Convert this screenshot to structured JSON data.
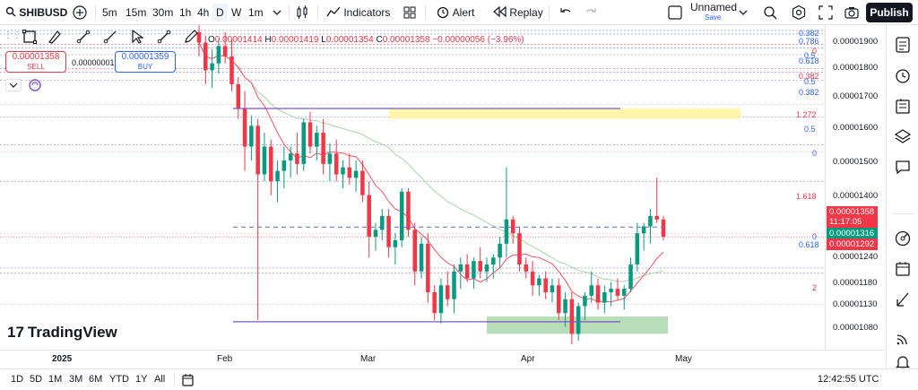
{
  "toolbar": {
    "symbol": "SHIBUSD",
    "intervals": [
      "5m",
      "15m",
      "30m",
      "1h",
      "4h",
      "D",
      "W",
      "1m"
    ],
    "active_interval": "D",
    "indicators_label": "Indicators",
    "alert_label": "Alert",
    "replay_label": "Replay",
    "layout_name": "Unnamed",
    "layout_status": "Save",
    "publish_label": "Publish"
  },
  "legend": {
    "open_key": "O",
    "open": "0.00001414",
    "high_key": "H",
    "high": "0.00001419",
    "low_key": "L",
    "low": "0.00001354",
    "close_key": "C",
    "close": "0.00001358",
    "change": "−0.00000056 (−3.96%)"
  },
  "trade": {
    "sell_price": "0.00001358",
    "sell_label": "SELL",
    "spread": "0.00000001",
    "buy_price": "0.00001359",
    "buy_label": "BUY"
  },
  "price_axis": {
    "ticks": [
      "0.00001900",
      "0.00001800",
      "0.00001700",
      "0.00001600",
      "0.00001500",
      "0.00001400",
      "0.00001240",
      "0.00001180",
      "0.00001130",
      "0.00001080"
    ],
    "badges": [
      "0.00001358",
      "11:17:05",
      "0.00001316",
      "0.00001292"
    ],
    "badge_colors": [
      "#f23645",
      "#f23645",
      "#089981",
      "#f23645"
    ]
  },
  "fib_labels": [
    "0.382",
    "0.786",
    "0",
    "0.5",
    "0.618",
    "0.382",
    "0.5",
    "0.382",
    "1.272",
    "0.5",
    "0",
    "1.618",
    "0",
    "0.618",
    "2"
  ],
  "time_axis": [
    "2025",
    "Feb",
    "Mar",
    "Apr",
    "May"
  ],
  "bottom": {
    "ranges": [
      "1D",
      "5D",
      "1M",
      "3M",
      "6M",
      "YTD",
      "1Y",
      "All"
    ],
    "clock": "12:42:55 UTC"
  },
  "brand": "TradingView",
  "colors": {
    "up": "#089981",
    "down": "#f23645",
    "accent": "#2962ff",
    "ma_fast": "#f7525f",
    "ma_slow": "#a5d6a7"
  },
  "chart_data": {
    "type": "candlestick",
    "symbol": "SHIBUSD",
    "interval": "D",
    "x_range": [
      "2025-01-12",
      "2025-04-25"
    ],
    "y_range": [
      1.05e-05,
      1.96e-05
    ],
    "ohlc": [
      [
        1.95,
        1.97,
        1.88,
        1.92
      ],
      [
        1.92,
        1.94,
        1.8,
        1.84
      ],
      [
        1.84,
        1.9,
        1.79,
        1.86
      ],
      [
        1.86,
        1.93,
        1.83,
        1.91
      ],
      [
        1.91,
        1.95,
        1.86,
        1.88
      ],
      [
        1.88,
        1.93,
        1.78,
        1.8
      ],
      [
        1.8,
        1.82,
        1.7,
        1.73
      ],
      [
        1.73,
        1.78,
        1.55,
        1.62
      ],
      [
        1.62,
        1.71,
        1.58,
        1.68
      ],
      [
        1.68,
        1.7,
        1.12,
        1.54
      ],
      [
        1.54,
        1.66,
        1.52,
        1.62
      ],
      [
        1.62,
        1.64,
        1.48,
        1.52
      ],
      [
        1.52,
        1.58,
        1.46,
        1.55
      ],
      [
        1.55,
        1.62,
        1.5,
        1.58
      ],
      [
        1.58,
        1.62,
        1.53,
        1.6
      ],
      [
        1.6,
        1.66,
        1.54,
        1.57
      ],
      [
        1.57,
        1.7,
        1.55,
        1.69
      ],
      [
        1.69,
        1.72,
        1.6,
        1.62
      ],
      [
        1.62,
        1.68,
        1.58,
        1.66
      ],
      [
        1.66,
        1.7,
        1.54,
        1.57
      ],
      [
        1.57,
        1.63,
        1.52,
        1.6
      ],
      [
        1.6,
        1.64,
        1.52,
        1.54
      ],
      [
        1.54,
        1.58,
        1.5,
        1.56
      ],
      [
        1.56,
        1.6,
        1.51,
        1.53
      ],
      [
        1.53,
        1.58,
        1.49,
        1.55
      ],
      [
        1.55,
        1.58,
        1.46,
        1.48
      ],
      [
        1.48,
        1.52,
        1.3,
        1.36
      ],
      [
        1.36,
        1.4,
        1.32,
        1.38
      ],
      [
        1.38,
        1.44,
        1.35,
        1.42
      ],
      [
        1.42,
        1.44,
        1.3,
        1.33
      ],
      [
        1.33,
        1.37,
        1.28,
        1.35
      ],
      [
        1.35,
        1.5,
        1.33,
        1.49
      ],
      [
        1.49,
        1.5,
        1.36,
        1.38
      ],
      [
        1.38,
        1.4,
        1.22,
        1.26
      ],
      [
        1.26,
        1.36,
        1.24,
        1.34
      ],
      [
        1.34,
        1.37,
        1.17,
        1.2
      ],
      [
        1.2,
        1.22,
        1.12,
        1.14
      ],
      [
        1.14,
        1.24,
        1.11,
        1.22
      ],
      [
        1.22,
        1.26,
        1.16,
        1.18
      ],
      [
        1.18,
        1.28,
        1.14,
        1.26
      ],
      [
        1.26,
        1.3,
        1.21,
        1.28
      ],
      [
        1.28,
        1.31,
        1.23,
        1.24
      ],
      [
        1.24,
        1.3,
        1.21,
        1.29
      ],
      [
        1.29,
        1.33,
        1.24,
        1.26
      ],
      [
        1.26,
        1.3,
        1.23,
        1.28
      ],
      [
        1.28,
        1.31,
        1.24,
        1.3
      ],
      [
        1.3,
        1.36,
        1.27,
        1.34
      ],
      [
        1.34,
        1.56,
        1.3,
        1.41
      ],
      [
        1.41,
        1.42,
        1.34,
        1.37
      ],
      [
        1.37,
        1.39,
        1.26,
        1.28
      ],
      [
        1.28,
        1.3,
        1.24,
        1.26
      ],
      [
        1.26,
        1.29,
        1.19,
        1.22
      ],
      [
        1.22,
        1.25,
        1.19,
        1.24
      ],
      [
        1.24,
        1.26,
        1.18,
        1.2
      ],
      [
        1.2,
        1.24,
        1.17,
        1.22
      ],
      [
        1.22,
        1.24,
        1.12,
        1.14
      ],
      [
        1.14,
        1.2,
        1.1,
        1.18
      ],
      [
        1.18,
        1.2,
        1.05,
        1.08
      ],
      [
        1.08,
        1.17,
        1.06,
        1.16
      ],
      [
        1.16,
        1.2,
        1.12,
        1.19
      ],
      [
        1.19,
        1.26,
        1.17,
        1.22
      ],
      [
        1.22,
        1.24,
        1.15,
        1.17
      ],
      [
        1.17,
        1.22,
        1.14,
        1.2
      ],
      [
        1.2,
        1.23,
        1.16,
        1.21
      ],
      [
        1.21,
        1.24,
        1.18,
        1.19
      ],
      [
        1.19,
        1.22,
        1.15,
        1.21
      ],
      [
        1.21,
        1.3,
        1.2,
        1.28
      ],
      [
        1.28,
        1.4,
        1.26,
        1.37
      ],
      [
        1.37,
        1.4,
        1.32,
        1.39
      ],
      [
        1.39,
        1.44,
        1.34,
        1.42
      ],
      [
        1.42,
        1.53,
        1.4,
        1.41
      ],
      [
        1.41,
        1.42,
        1.35,
        1.36
      ]
    ],
    "ohlc_scale": "values × 0.00001",
    "drawings": {
      "upper_zone": [
        1.7e-05,
        1.73e-05
      ],
      "lower_zone": [
        1.08e-05,
        1.13e-05
      ],
      "upper_horizontal": 1.73e-05,
      "middle_dashed": 1.388e-05,
      "lower_horizontal": 1.115e-05
    }
  }
}
